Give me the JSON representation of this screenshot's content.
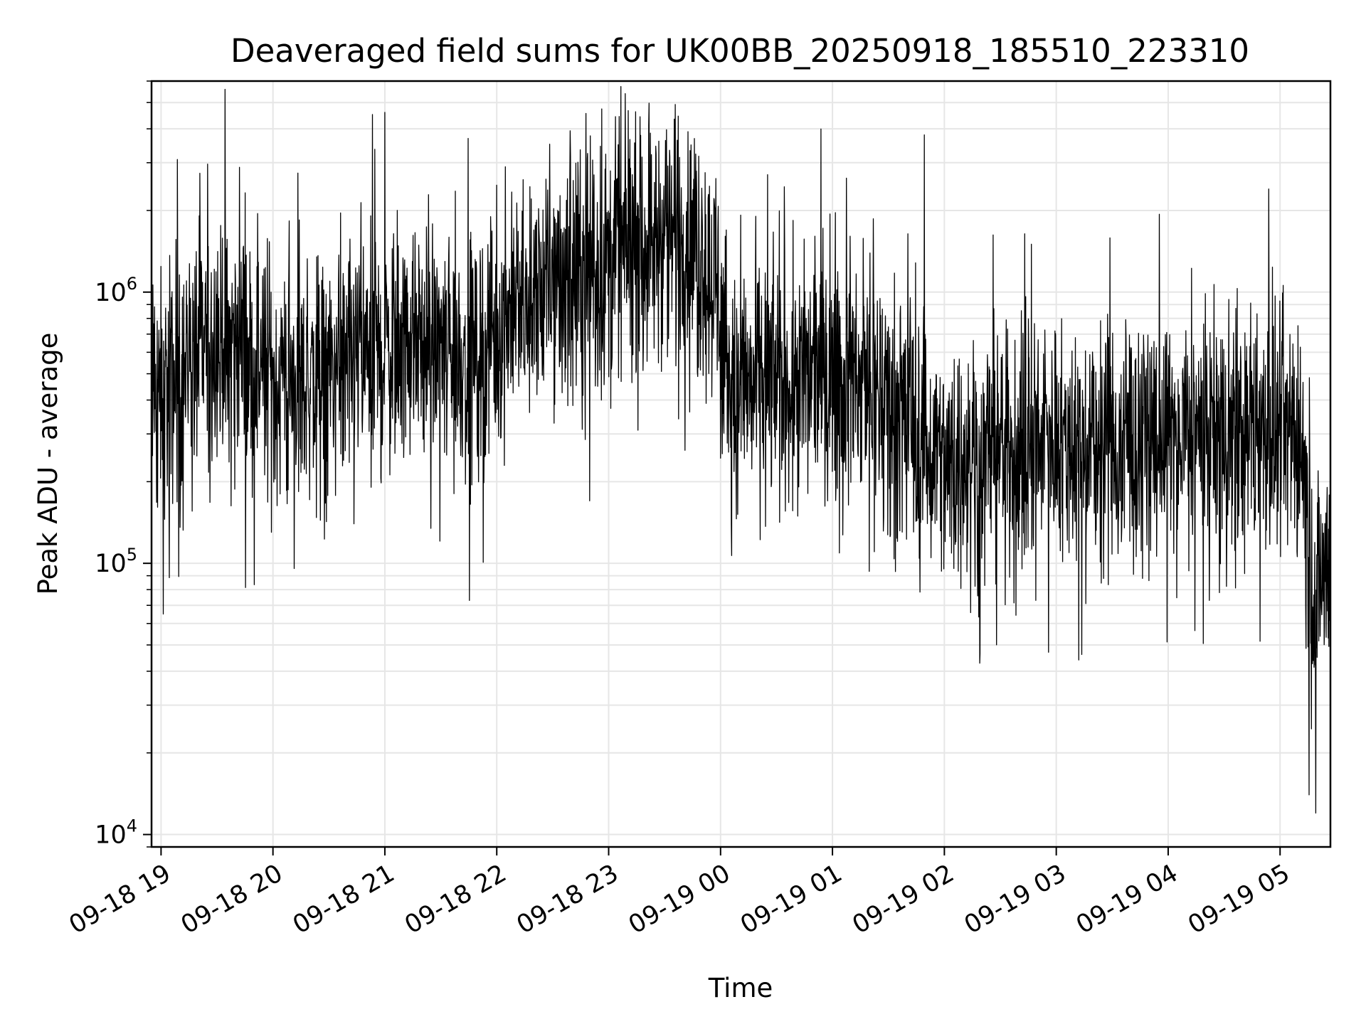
{
  "chart_data": {
    "type": "line",
    "title": "Deaveraged field sums for UK00BB_20250918_185510_223310",
    "xlabel": "Time",
    "ylabel": "Peak ADU - average",
    "yscale": "log",
    "ylim": [
      9000,
      6000000
    ],
    "grid": true,
    "line_color": "#000000",
    "grid_color": "#e6e6e6",
    "x_start_hours": -0.085,
    "x_end_hours": 10.45,
    "x_ticks": [
      {
        "hours": 0,
        "label": "09-18 19"
      },
      {
        "hours": 1,
        "label": "09-18 20"
      },
      {
        "hours": 2,
        "label": "09-18 21"
      },
      {
        "hours": 3,
        "label": "09-18 22"
      },
      {
        "hours": 4,
        "label": "09-18 23"
      },
      {
        "hours": 5,
        "label": "09-19 00"
      },
      {
        "hours": 6,
        "label": "09-19 01"
      },
      {
        "hours": 7,
        "label": "09-19 02"
      },
      {
        "hours": 8,
        "label": "09-19 03"
      },
      {
        "hours": 9,
        "label": "09-19 04"
      },
      {
        "hours": 10,
        "label": "09-19 05"
      }
    ],
    "y_ticks": [
      {
        "value": 10000,
        "base": "10",
        "exp": "4"
      },
      {
        "value": 100000,
        "base": "10",
        "exp": "5"
      },
      {
        "value": 1000000,
        "base": "10",
        "exp": "6"
      }
    ],
    "series": [
      {
        "name": "Peak ADU - average",
        "sample_interval_hours": 0.003,
        "trend": {
          "hours": [
            -0.085,
            0.1,
            0.5,
            0.7,
            1.0,
            1.5,
            2.0,
            2.5,
            2.8,
            3.2,
            3.7,
            4.3,
            4.7,
            4.95,
            5.1,
            5.5,
            6.0,
            6.5,
            7.0,
            7.5,
            8.0,
            8.5,
            9.0,
            9.5,
            10.0,
            10.2,
            10.25,
            10.3,
            10.45
          ],
          "median": [
            400000,
            450000,
            720000,
            650000,
            450000,
            480000,
            600000,
            620000,
            560000,
            900000,
            1200000,
            1500000,
            1600000,
            1100000,
            400000,
            480000,
            520000,
            420000,
            220000,
            260000,
            280000,
            270000,
            290000,
            300000,
            290000,
            300000,
            110000,
            70000,
            100000
          ]
        },
        "spikes": [
          {
            "hours": 0.02,
            "value": 65000
          },
          {
            "hours": 2.0,
            "value": 4600000
          },
          {
            "hours": 3.83,
            "value": 170000
          },
          {
            "hours": 6.82,
            "value": 3800000
          },
          {
            "hours": 7.93,
            "value": 47000
          },
          {
            "hours": 8.2,
            "value": 44000
          },
          {
            "hours": 9.9,
            "value": 2400000
          },
          {
            "hours": 10.26,
            "value": 14000
          },
          {
            "hours": 10.32,
            "value": 12000
          }
        ]
      }
    ]
  }
}
